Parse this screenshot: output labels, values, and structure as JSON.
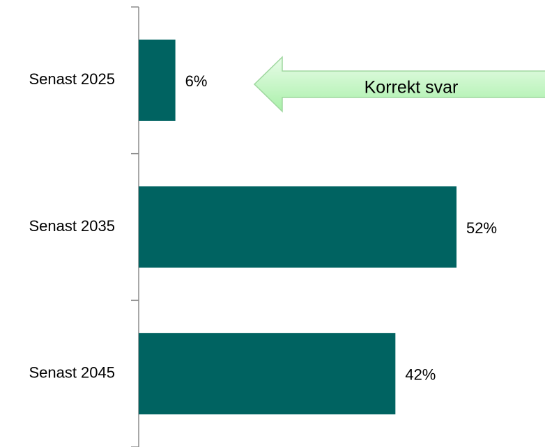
{
  "chart_data": {
    "type": "barh",
    "categories": [
      "Senast 2025",
      "Senast 2035",
      "Senast 2045"
    ],
    "values": [
      6,
      52,
      42
    ],
    "value_labels": [
      "6%",
      "52%",
      "42%"
    ],
    "color": "#006361",
    "annotation": "Korrekt svar"
  }
}
